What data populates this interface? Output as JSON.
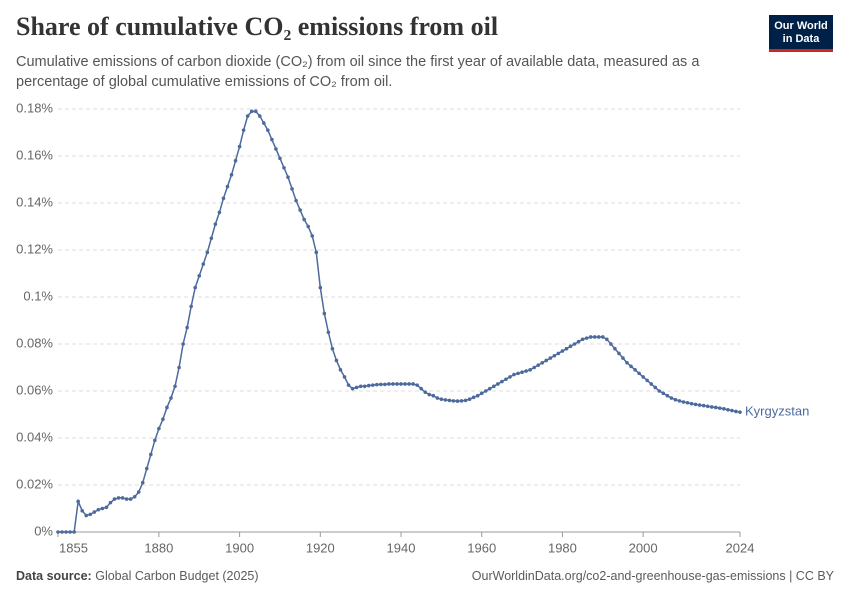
{
  "chart_data": {
    "type": "line",
    "title": "Share of cumulative CO₂ emissions from oil",
    "subtitle": "Cumulative emissions of carbon dioxide (CO₂) from oil since the first year of available data, measured as a percentage of global cumulative emissions of CO₂ from oil.",
    "logo": [
      "Our World",
      "in Data"
    ],
    "source_label": "Data source:",
    "source": "Global Carbon Budget (2025)",
    "url": "OurWorldinData.org/co2-and-greenhouse-gas-emissions | CC BY",
    "x": [
      1855,
      1856,
      1857,
      1858,
      1859,
      1860,
      1861,
      1862,
      1863,
      1864,
      1865,
      1866,
      1867,
      1868,
      1869,
      1870,
      1871,
      1872,
      1873,
      1874,
      1875,
      1876,
      1877,
      1878,
      1879,
      1880,
      1881,
      1882,
      1883,
      1884,
      1885,
      1886,
      1887,
      1888,
      1889,
      1890,
      1891,
      1892,
      1893,
      1894,
      1895,
      1896,
      1897,
      1898,
      1899,
      1900,
      1901,
      1902,
      1903,
      1904,
      1905,
      1906,
      1907,
      1908,
      1909,
      1910,
      1911,
      1912,
      1913,
      1914,
      1915,
      1916,
      1917,
      1918,
      1919,
      1920,
      1921,
      1922,
      1923,
      1924,
      1925,
      1926,
      1927,
      1928,
      1929,
      1930,
      1931,
      1932,
      1933,
      1934,
      1935,
      1936,
      1937,
      1938,
      1939,
      1940,
      1941,
      1942,
      1943,
      1944,
      1945,
      1946,
      1947,
      1948,
      1949,
      1950,
      1951,
      1952,
      1953,
      1954,
      1955,
      1956,
      1957,
      1958,
      1959,
      1960,
      1961,
      1962,
      1963,
      1964,
      1965,
      1966,
      1967,
      1968,
      1969,
      1970,
      1971,
      1972,
      1973,
      1974,
      1975,
      1976,
      1977,
      1978,
      1979,
      1980,
      1981,
      1982,
      1983,
      1984,
      1985,
      1986,
      1987,
      1988,
      1989,
      1990,
      1991,
      1992,
      1993,
      1994,
      1995,
      1996,
      1997,
      1998,
      1999,
      2000,
      2001,
      2002,
      2003,
      2004,
      2005,
      2006,
      2007,
      2008,
      2009,
      2010,
      2011,
      2012,
      2013,
      2014,
      2015,
      2016,
      2017,
      2018,
      2019,
      2020,
      2021,
      2022,
      2023,
      2024
    ],
    "series": [
      {
        "name": "Kyrgyzstan",
        "color": "#4c6a9c",
        "values": [
          0,
          0,
          0,
          0,
          0,
          0.013,
          0.009,
          0.007,
          0.0075,
          0.0085,
          0.0095,
          0.01,
          0.0105,
          0.0125,
          0.014,
          0.0145,
          0.0145,
          0.014,
          0.014,
          0.015,
          0.017,
          0.021,
          0.027,
          0.033,
          0.039,
          0.044,
          0.048,
          0.053,
          0.057,
          0.062,
          0.07,
          0.08,
          0.087,
          0.096,
          0.104,
          0.109,
          0.114,
          0.119,
          0.125,
          0.131,
          0.136,
          0.142,
          0.147,
          0.152,
          0.158,
          0.164,
          0.171,
          0.177,
          0.179,
          0.179,
          0.177,
          0.174,
          0.171,
          0.167,
          0.163,
          0.159,
          0.155,
          0.151,
          0.146,
          0.141,
          0.137,
          0.133,
          0.13,
          0.126,
          0.119,
          0.104,
          0.093,
          0.085,
          0.078,
          0.073,
          0.069,
          0.066,
          0.0625,
          0.061,
          0.0615,
          0.062,
          0.062,
          0.0623,
          0.0625,
          0.0627,
          0.0628,
          0.0628,
          0.063,
          0.063,
          0.063,
          0.063,
          0.063,
          0.063,
          0.063,
          0.0625,
          0.061,
          0.0595,
          0.0585,
          0.058,
          0.057,
          0.0565,
          0.0562,
          0.056,
          0.0558,
          0.0557,
          0.0558,
          0.056,
          0.0565,
          0.0573,
          0.058,
          0.059,
          0.06,
          0.061,
          0.062,
          0.063,
          0.064,
          0.065,
          0.066,
          0.067,
          0.0675,
          0.068,
          0.0685,
          0.069,
          0.07,
          0.071,
          0.072,
          0.073,
          0.074,
          0.075,
          0.076,
          0.077,
          0.078,
          0.079,
          0.08,
          0.081,
          0.082,
          0.0825,
          0.083,
          0.083,
          0.083,
          0.083,
          0.082,
          0.08,
          0.078,
          0.076,
          0.074,
          0.072,
          0.0705,
          0.069,
          0.0675,
          0.066,
          0.0645,
          0.063,
          0.0615,
          0.06,
          0.059,
          0.058,
          0.057,
          0.0563,
          0.0558,
          0.0553,
          0.055,
          0.0546,
          0.0543,
          0.054,
          0.0538,
          0.0535,
          0.0532,
          0.053,
          0.0527,
          0.0524,
          0.052,
          0.0517,
          0.0513,
          0.051
        ]
      }
    ],
    "xlim": [
      1855,
      2024
    ],
    "xticks": [
      1855,
      1880,
      1900,
      1920,
      1940,
      1960,
      1980,
      2000,
      2024
    ],
    "ylim": [
      0,
      0.18
    ],
    "yticks": [
      {
        "value": 0,
        "label": "0%"
      },
      {
        "value": 0.02,
        "label": "0.02%"
      },
      {
        "value": 0.04,
        "label": "0.04%"
      },
      {
        "value": 0.06,
        "label": "0.06%"
      },
      {
        "value": 0.08,
        "label": "0.08%"
      },
      {
        "value": 0.1,
        "label": "0.1%"
      },
      {
        "value": 0.12,
        "label": "0.12%"
      },
      {
        "value": 0.14,
        "label": "0.14%"
      },
      {
        "value": 0.16,
        "label": "0.16%"
      },
      {
        "value": 0.18,
        "label": "0.18%"
      }
    ],
    "grid": true
  }
}
